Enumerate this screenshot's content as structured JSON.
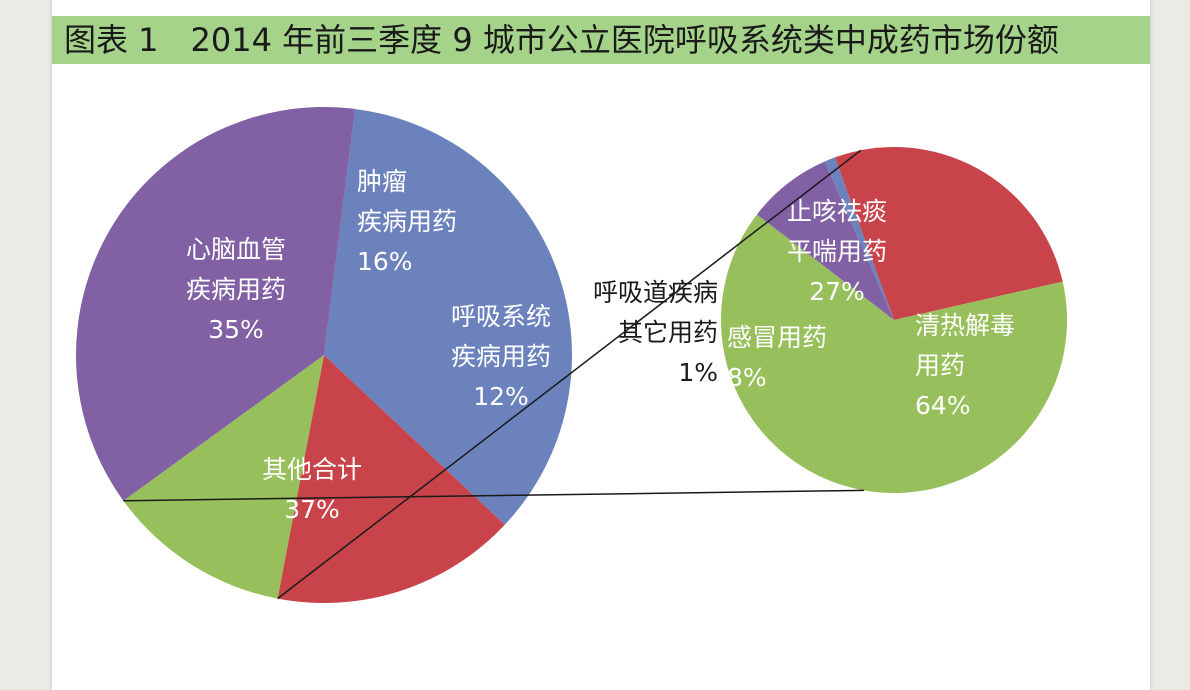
{
  "title": "图表 1　2014 年前三季度 9 城市公立医院呼吸系统类中成药市场份额",
  "colors": {
    "blue": "#6b82bd",
    "red": "#c9444a",
    "green": "#97c05c",
    "purple": "#8160a3",
    "title_bg": "#a6d38a"
  },
  "chart_data": [
    {
      "type": "pie",
      "title": "",
      "slices": [
        {
          "label_lines": [
            "心脑血管",
            "疾病用药"
          ],
          "value": 35,
          "pct": "35%",
          "color": "#6b82bd"
        },
        {
          "label_lines": [
            "肿瘤",
            "疾病用药"
          ],
          "value": 16,
          "pct": "16%",
          "color": "#c9444a"
        },
        {
          "label_lines": [
            "呼吸系统",
            "疾病用药"
          ],
          "value": 12,
          "pct": "12%",
          "color": "#97c05c"
        },
        {
          "label_lines": [
            "其他合计"
          ],
          "value": 37,
          "pct": "37%",
          "color": "#8160a3"
        }
      ]
    },
    {
      "type": "pie",
      "title": "",
      "slices": [
        {
          "label_lines": [
            "止咳祛痰",
            "平喘用药"
          ],
          "value": 27,
          "pct": "27%",
          "color": "#c9444a"
        },
        {
          "label_lines": [
            "清热解毒",
            "用药"
          ],
          "value": 64,
          "pct": "64%",
          "color": "#97c05c"
        },
        {
          "label_lines": [
            "感冒用药"
          ],
          "value": 8,
          "pct": "8%",
          "color": "#8160a3"
        },
        {
          "label_lines": [
            "呼吸道疾病",
            "其它用药"
          ],
          "value": 1,
          "pct": "1%",
          "color": "#6b82bd"
        }
      ]
    }
  ]
}
